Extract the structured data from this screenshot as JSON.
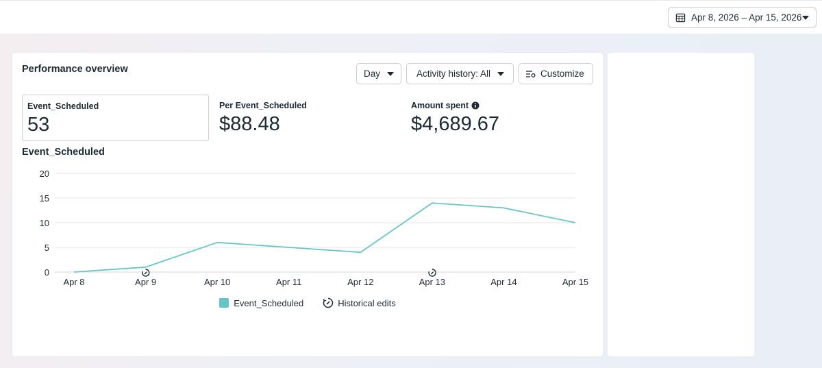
{
  "header": {
    "date_range": "Apr 8, 2026 – Apr 15, 2026",
    "calendar_icon": "calendar-icon",
    "caret_icon": "caret-down-icon"
  },
  "performance": {
    "title": "Performance overview",
    "controls": {
      "granularity": "Day",
      "activity_history": "Activity history: All",
      "customize": "Customize"
    },
    "metrics": [
      {
        "label": "Event_Scheduled",
        "value": "53",
        "selected": true
      },
      {
        "label": "Per Event_Scheduled",
        "value": "$88.48",
        "selected": false
      },
      {
        "label": "Amount spent",
        "value": "$4,689.67",
        "selected": false,
        "info_icon": "info-icon"
      }
    ],
    "chart_title": "Event_Scheduled",
    "legend": {
      "series_label": "Event_Scheduled",
      "historical_label": "Historical edits"
    }
  },
  "colors": {
    "accent": "#63c7c9",
    "grid": "#e4e6eb",
    "text": "#1c2b33"
  },
  "chart_data": {
    "type": "line",
    "title": "Event_Scheduled",
    "categories": [
      "Apr 8",
      "Apr 9",
      "Apr 10",
      "Apr 11",
      "Apr 12",
      "Apr 13",
      "Apr 14",
      "Apr 15"
    ],
    "series": [
      {
        "name": "Event_Scheduled",
        "values": [
          0,
          1,
          6,
          5,
          4,
          14,
          13,
          10
        ]
      }
    ],
    "ylim": [
      0,
      20
    ],
    "yticks": [
      0,
      5,
      10,
      15,
      20
    ],
    "grid": true,
    "historical_edit_markers": [
      "Apr 9",
      "Apr 13"
    ],
    "legend_position": "bottom"
  }
}
